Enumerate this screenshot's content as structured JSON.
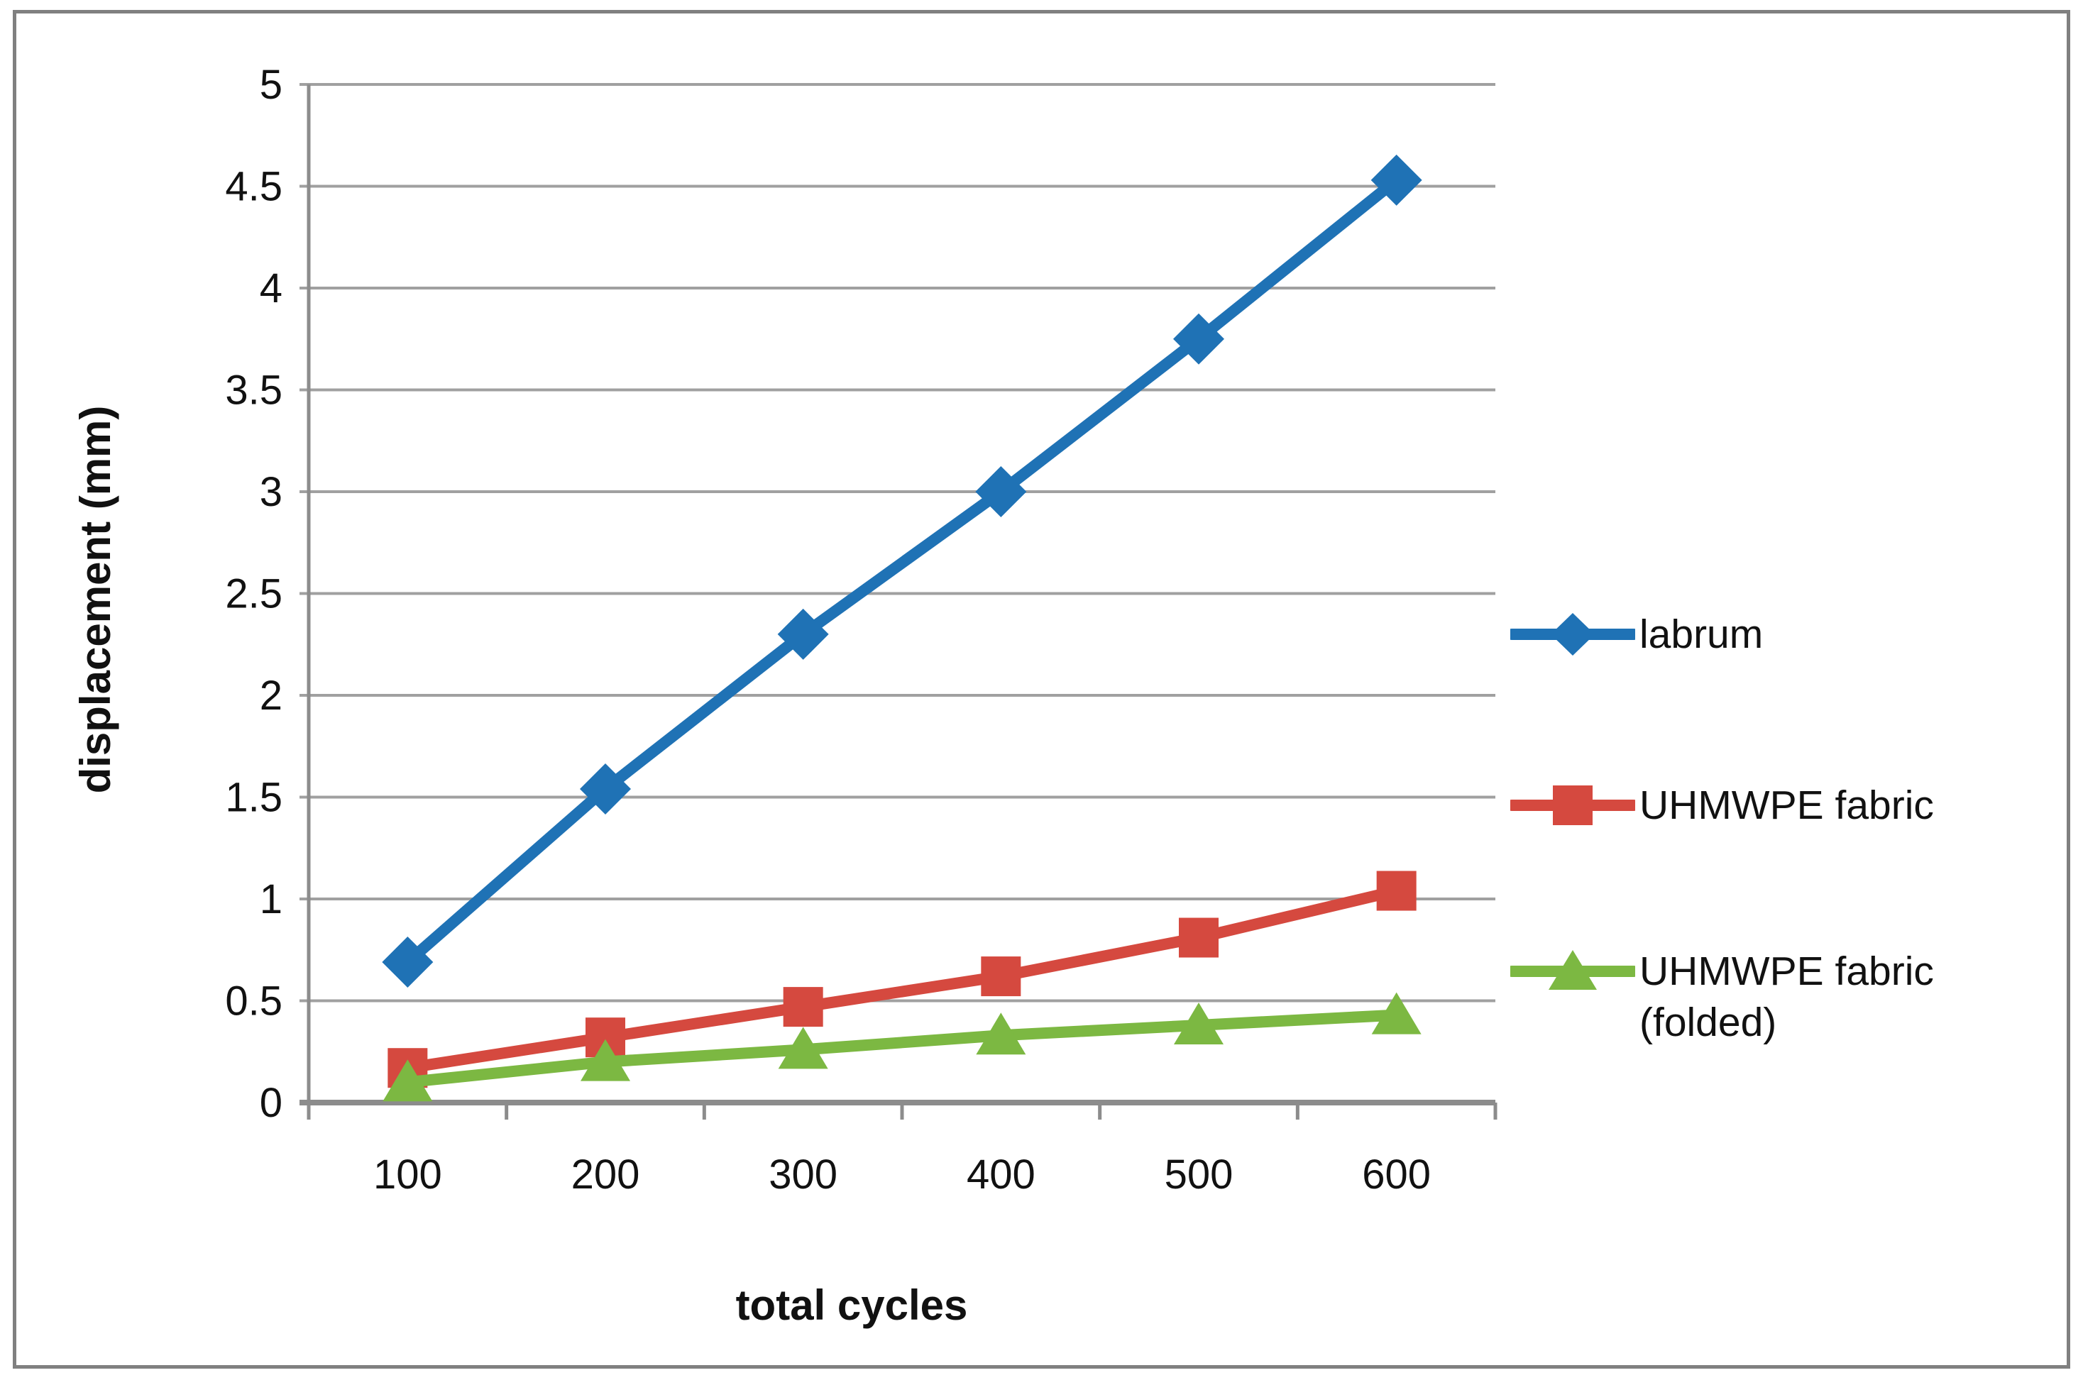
{
  "axes": {
    "y_title": "displacement (mm)",
    "x_title": "total cycles"
  },
  "legend": {
    "items": [
      {
        "label": "labrum"
      },
      {
        "label": "UHMWPE fabric"
      },
      {
        "label": "UHMWPE fabric\n(folded)"
      }
    ]
  },
  "colors": {
    "gridline": "#A0A0A0",
    "axis_line": "#8C8C8C",
    "frame_border": "#808080",
    "text": "#111111"
  },
  "chart_data": {
    "type": "line",
    "categories": [
      "100",
      "200",
      "300",
      "400",
      "500",
      "600"
    ],
    "series": [
      {
        "name": "labrum",
        "color": "#1F72B5",
        "marker": "diamond",
        "values": [
          0.69,
          1.54,
          2.3,
          3.0,
          3.75,
          4.53
        ]
      },
      {
        "name": "UHMWPE fabric",
        "color": "#D5493F",
        "marker": "square",
        "values": [
          0.17,
          0.32,
          0.47,
          0.62,
          0.81,
          1.04
        ]
      },
      {
        "name": "UHMWPE fabric (folded)",
        "color": "#7CB842",
        "marker": "triangle",
        "values": [
          0.1,
          0.2,
          0.26,
          0.33,
          0.38,
          0.43
        ]
      }
    ],
    "title": "",
    "xlabel": "total cycles",
    "ylabel": "displacement (mm)",
    "ylim": [
      0,
      5
    ],
    "ytick_step": 0.5,
    "ytick_labels": [
      "0",
      "0.5",
      "1",
      "1.5",
      "2",
      "2.5",
      "3",
      "3.5",
      "4",
      "4.5",
      "5"
    ],
    "grid": true,
    "legend_position": "right"
  }
}
